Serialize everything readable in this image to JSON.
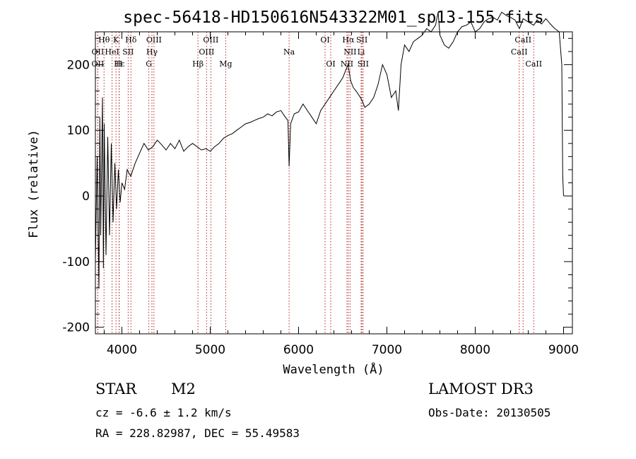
{
  "chart_data": {
    "type": "line",
    "title": "spec-56418-HD150616N543322M01_sp13-155.fits",
    "xlabel": "Wavelength (Å)",
    "ylabel": "Flux (relative)",
    "xlim": [
      3700,
      9100
    ],
    "ylim": [
      -210,
      250
    ],
    "x_ticks": [
      4000,
      5000,
      6000,
      7000,
      8000,
      9000
    ],
    "y_ticks": [
      -200,
      -100,
      0,
      100,
      200
    ],
    "series": [
      {
        "name": "flux",
        "x": [
          3700,
          3720,
          3740,
          3750,
          3760,
          3780,
          3790,
          3800,
          3820,
          3840,
          3860,
          3880,
          3900,
          3920,
          3940,
          3960,
          3980,
          4000,
          4030,
          4060,
          4100,
          4150,
          4200,
          4250,
          4300,
          4350,
          4400,
          4450,
          4500,
          4550,
          4600,
          4650,
          4700,
          4750,
          4800,
          4850,
          4900,
          4950,
          5000,
          5050,
          5100,
          5150,
          5200,
          5250,
          5300,
          5350,
          5400,
          5450,
          5500,
          5550,
          5600,
          5650,
          5700,
          5750,
          5800,
          5850,
          5880,
          5893,
          5910,
          5950,
          6000,
          6050,
          6100,
          6150,
          6200,
          6250,
          6300,
          6350,
          6400,
          6450,
          6500,
          6530,
          6560,
          6590,
          6620,
          6650,
          6700,
          6720,
          6750,
          6800,
          6850,
          6900,
          6950,
          7000,
          7050,
          7100,
          7130,
          7160,
          7200,
          7250,
          7300,
          7350,
          7400,
          7450,
          7500,
          7550,
          7580,
          7600,
          7650,
          7700,
          7750,
          7800,
          7850,
          7900,
          7950,
          8000,
          8050,
          8100,
          8150,
          8200,
          8250,
          8300,
          8350,
          8400,
          8450,
          8500,
          8542,
          8600,
          8662,
          8700,
          8750,
          8800,
          8850,
          8900,
          8950,
          8980,
          8990,
          9000
        ],
        "values": [
          -100,
          60,
          -140,
          120,
          -60,
          150,
          -110,
          110,
          -90,
          90,
          -60,
          80,
          -40,
          50,
          -20,
          40,
          -10,
          20,
          10,
          40,
          30,
          50,
          65,
          80,
          70,
          75,
          85,
          78,
          70,
          80,
          72,
          85,
          68,
          75,
          80,
          75,
          70,
          72,
          68,
          75,
          80,
          88,
          92,
          95,
          100,
          105,
          110,
          112,
          115,
          118,
          120,
          125,
          122,
          128,
          130,
          120,
          115,
          45,
          110,
          125,
          128,
          140,
          130,
          120,
          110,
          130,
          140,
          150,
          160,
          170,
          180,
          190,
          200,
          175,
          165,
          160,
          150,
          145,
          135,
          140,
          150,
          170,
          200,
          185,
          150,
          160,
          130,
          200,
          230,
          220,
          235,
          240,
          245,
          255,
          250,
          260,
          280,
          245,
          230,
          225,
          235,
          250,
          258,
          260,
          265,
          250,
          255,
          265,
          270,
          272,
          268,
          280,
          275,
          272,
          268,
          255,
          270,
          265,
          260,
          268,
          262,
          270,
          262,
          255,
          250,
          200,
          30,
          0
        ]
      }
    ],
    "line_markers": [
      {
        "label": "Hθ",
        "x": 3798,
        "row": 0
      },
      {
        "label": "K",
        "x": 3933,
        "row": 0
      },
      {
        "label": "Hδ",
        "x": 4102,
        "row": 0
      },
      {
        "label": "OIII",
        "x": 4363,
        "row": 0
      },
      {
        "label": "OIII",
        "x": 5007,
        "row": 0
      },
      {
        "label": "OI",
        "x": 6300,
        "row": 0
      },
      {
        "label": "Hα",
        "x": 6563,
        "row": 0
      },
      {
        "label": "SII",
        "x": 6717,
        "row": 0
      },
      {
        "label": "CaII",
        "x": 8542,
        "row": 0
      },
      {
        "label": "OII",
        "x": 3727,
        "row": 1
      },
      {
        "label": "HeI",
        "x": 3889,
        "row": 1
      },
      {
        "label": "SII",
        "x": 4071,
        "row": 1
      },
      {
        "label": "Hγ",
        "x": 4340,
        "row": 1
      },
      {
        "label": "OIII",
        "x": 4959,
        "row": 1
      },
      {
        "label": "Na",
        "x": 5893,
        "row": 1
      },
      {
        "label": "NII",
        "x": 6583,
        "row": 1
      },
      {
        "label": "Li",
        "x": 6708,
        "row": 1
      },
      {
        "label": "CaII",
        "x": 8498,
        "row": 1
      },
      {
        "label": "OII",
        "x": 3727,
        "row": 2
      },
      {
        "label": "Hε",
        "x": 3970,
        "row": 2
      },
      {
        "label": "H",
        "x": 3968,
        "row": 2
      },
      {
        "label": "G",
        "x": 4305,
        "row": 2
      },
      {
        "label": "Hβ",
        "x": 4861,
        "row": 2
      },
      {
        "label": "Mg",
        "x": 5175,
        "row": 2
      },
      {
        "label": "OI",
        "x": 6364,
        "row": 2
      },
      {
        "label": "NII",
        "x": 6548,
        "row": 2
      },
      {
        "label": "SII",
        "x": 6731,
        "row": 2
      },
      {
        "label": "CaII",
        "x": 8662,
        "row": 2
      }
    ]
  },
  "info": {
    "object_class": "STAR",
    "subclass": "M2",
    "survey": "LAMOST DR3",
    "cz": "cz = -6.6 ± 1.2 km/s",
    "obs_date": "Obs-Date: 20130505",
    "coords": "RA = 228.82987, DEC =  55.49583"
  }
}
